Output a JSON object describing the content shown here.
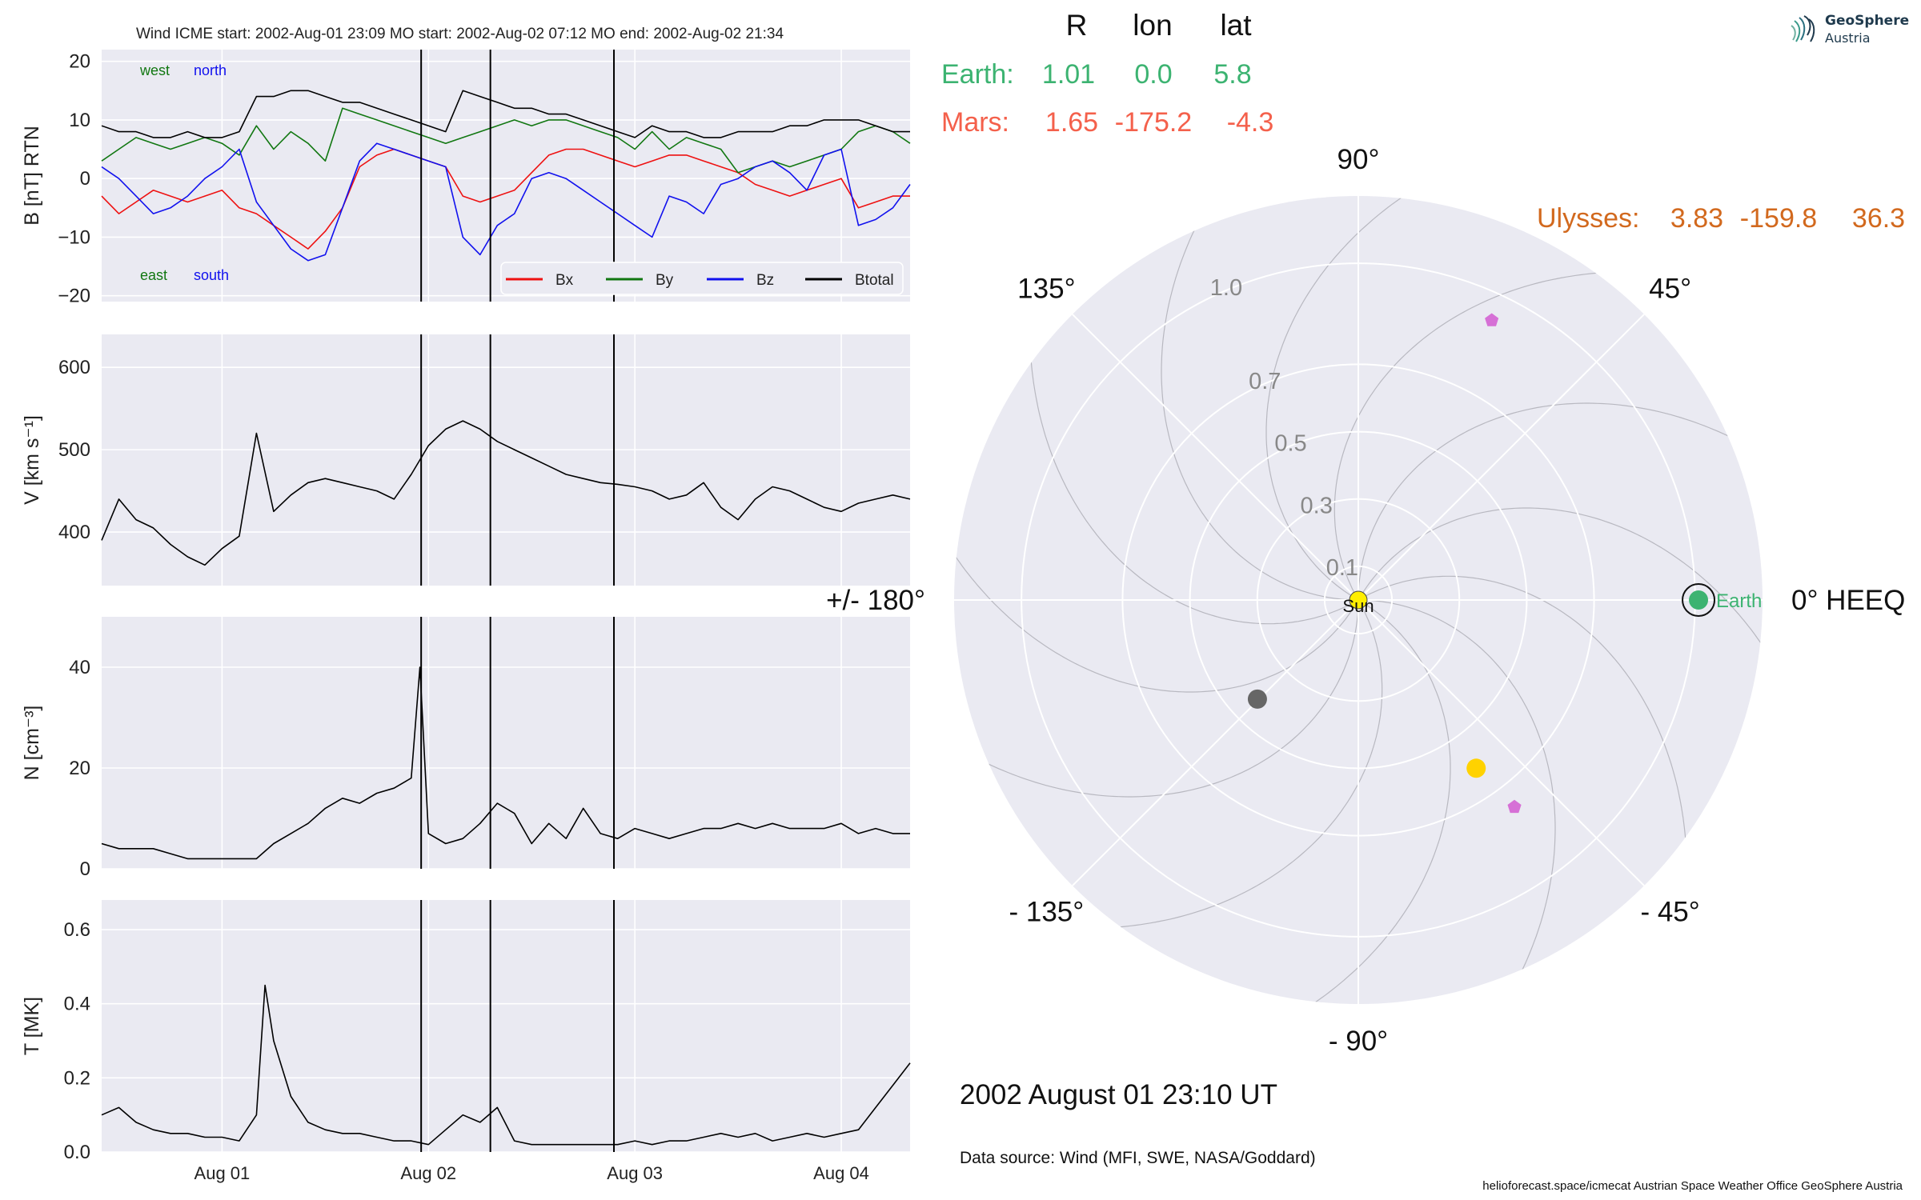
{
  "panel_title": "Wind    ICME start: 2002-Aug-01 23:09   MO start: 2002-Aug-02 07:12   MO end: 2002-Aug-02 21:34",
  "logo": {
    "line1": "GeoSphere",
    "line2": "Austria"
  },
  "position_table": {
    "headers": [
      "R",
      "lon",
      "lat"
    ],
    "rows": [
      {
        "name": "Earth:",
        "R": "1.01",
        "lon": "0.0",
        "lat": "5.8",
        "color": "#3cb371"
      },
      {
        "name": "Mars:",
        "R": "1.65",
        "lon": "-175.2",
        "lat": "-4.3",
        "color": "#f4604b"
      }
    ],
    "ulysses": {
      "name": "Ulysses:",
      "R": "3.83",
      "lon": "-159.8",
      "lat": "36.3",
      "color": "#d2691e"
    }
  },
  "timestamp": "2002 August 01  23:10 UT",
  "data_source": "Data source: Wind (MFI, SWE, NASA/Goddard)",
  "credits": "helioforecast.space/icmecat   Austrian Space Weather Office   GeoSphere Austria",
  "colors": {
    "bx": "#ee1111",
    "by": "#117711",
    "bz": "#1111ee",
    "btotal": "#000000",
    "earth": "#3cb371",
    "mars": "#666666",
    "sun": "#ffee00",
    "ulysses_marker": "#d670d6",
    "polar_bg": "#eaeaf2"
  },
  "chart_data": [
    {
      "type": "line",
      "title": "Wind    ICME start: 2002-Aug-01 23:09   MO start: 2002-Aug-02 07:12   MO end: 2002-Aug-02 21:34",
      "ylabel": "B [nT] RTN",
      "ylim": [
        -21,
        22
      ],
      "yticks": [
        20,
        10,
        0,
        -10,
        -20
      ],
      "ytick_labels": [
        "20",
        "10",
        "0",
        "−10",
        "−20"
      ],
      "xlim": [
        "2002-07-31 10:00",
        "2002-08-04 08:00"
      ],
      "xticks": [
        "2002-08-01 00:00",
        "2002-08-02 00:00",
        "2002-08-03 00:00",
        "2002-08-04 00:00"
      ],
      "xtick_labels": [
        "Aug 01",
        "Aug 02",
        "Aug 03",
        "Aug 04"
      ],
      "vlines": [
        "2002-08-01 23:09",
        "2002-08-02 07:12",
        "2002-08-02 21:34"
      ],
      "annotations": [
        {
          "text": "west",
          "color": "#117711"
        },
        {
          "text": "north",
          "color": "#1111ee"
        },
        {
          "text": "east",
          "color": "#117711"
        },
        {
          "text": "south",
          "color": "#1111ee"
        }
      ],
      "legend": {
        "position": "lower-right",
        "entries": [
          "Bx",
          "By",
          "Bz",
          "Btotal"
        ]
      },
      "series": [
        {
          "name": "Bx",
          "color": "#ee1111",
          "x_hours": [
            -14,
            -12,
            -10,
            -8,
            -6,
            -4,
            -2,
            0,
            2,
            4,
            6,
            8,
            10,
            12,
            14,
            16,
            18,
            20,
            22,
            24,
            26,
            28,
            30,
            32,
            34,
            36,
            38,
            40,
            42,
            44,
            46,
            48,
            50,
            52,
            54,
            56,
            58,
            60,
            62,
            64,
            66,
            68,
            70,
            72,
            74,
            76,
            78,
            80
          ],
          "values": [
            -3,
            -6,
            -4,
            -2,
            -3,
            -4,
            -3,
            -2,
            -5,
            -6,
            -8,
            -10,
            -12,
            -9,
            -5,
            2,
            4,
            5,
            4,
            3,
            2,
            -3,
            -4,
            -3,
            -2,
            1,
            4,
            5,
            5,
            4,
            3,
            2,
            3,
            4,
            4,
            3,
            2,
            1,
            -1,
            -2,
            -3,
            -2,
            -1,
            0,
            -5,
            -4,
            -3,
            -3
          ]
        },
        {
          "name": "By",
          "color": "#117711",
          "x_hours": [
            -14,
            -12,
            -10,
            -8,
            -6,
            -4,
            -2,
            0,
            2,
            4,
            6,
            8,
            10,
            12,
            14,
            16,
            18,
            20,
            22,
            24,
            26,
            28,
            30,
            32,
            34,
            36,
            38,
            40,
            42,
            44,
            46,
            48,
            50,
            52,
            54,
            56,
            58,
            60,
            62,
            64,
            66,
            68,
            70,
            72,
            74,
            76,
            78,
            80
          ],
          "values": [
            3,
            5,
            7,
            6,
            5,
            6,
            7,
            6,
            4,
            9,
            5,
            8,
            6,
            3,
            12,
            11,
            10,
            9,
            8,
            7,
            6,
            7,
            8,
            9,
            10,
            9,
            10,
            10,
            9,
            8,
            7,
            5,
            8,
            5,
            7,
            6,
            5,
            1,
            2,
            3,
            2,
            3,
            4,
            5,
            8,
            9,
            8,
            6
          ]
        },
        {
          "name": "Bz",
          "color": "#1111ee",
          "x_hours": [
            -14,
            -12,
            -10,
            -8,
            -6,
            -4,
            -2,
            0,
            2,
            4,
            6,
            8,
            10,
            12,
            14,
            16,
            18,
            20,
            22,
            24,
            26,
            28,
            30,
            32,
            34,
            36,
            38,
            40,
            42,
            44,
            46,
            48,
            50,
            52,
            54,
            56,
            58,
            60,
            62,
            64,
            66,
            68,
            70,
            72,
            74,
            76,
            78,
            80
          ],
          "values": [
            2,
            0,
            -3,
            -6,
            -5,
            -3,
            0,
            2,
            5,
            -4,
            -8,
            -12,
            -14,
            -13,
            -5,
            3,
            6,
            5,
            4,
            3,
            2,
            -10,
            -13,
            -8,
            -6,
            0,
            1,
            0,
            -2,
            -4,
            -6,
            -8,
            -10,
            -3,
            -4,
            -6,
            -1,
            0,
            2,
            3,
            1,
            -2,
            4,
            5,
            -8,
            -7,
            -5,
            -1
          ]
        },
        {
          "name": "Btotal",
          "color": "#000000",
          "x_hours": [
            -14,
            -12,
            -10,
            -8,
            -6,
            -4,
            -2,
            0,
            2,
            4,
            6,
            8,
            10,
            12,
            14,
            16,
            18,
            20,
            22,
            24,
            26,
            28,
            30,
            32,
            34,
            36,
            38,
            40,
            42,
            44,
            46,
            48,
            50,
            52,
            54,
            56,
            58,
            60,
            62,
            64,
            66,
            68,
            70,
            72,
            74,
            76,
            78,
            80
          ],
          "values": [
            9,
            8,
            8,
            7,
            7,
            8,
            7,
            7,
            8,
            14,
            14,
            15,
            15,
            14,
            13,
            13,
            12,
            11,
            10,
            9,
            8,
            15,
            14,
            13,
            12,
            12,
            11,
            11,
            10,
            9,
            8,
            7,
            9,
            8,
            8,
            7,
            7,
            8,
            8,
            8,
            9,
            9,
            10,
            10,
            10,
            9,
            8,
            8
          ]
        }
      ]
    },
    {
      "type": "line",
      "ylabel": "V [km s⁻¹]",
      "ylim": [
        335,
        640
      ],
      "yticks": [
        600,
        500,
        400
      ],
      "ytick_labels": [
        "600",
        "500",
        "400"
      ],
      "vlines": [
        "2002-08-01 23:09",
        "2002-08-02 07:12",
        "2002-08-02 21:34"
      ],
      "series": [
        {
          "name": "V",
          "color": "#000000",
          "x_hours": [
            -14,
            -12,
            -10,
            -8,
            -6,
            -4,
            -2,
            0,
            2,
            4,
            6,
            8,
            10,
            12,
            14,
            16,
            18,
            20,
            22,
            24,
            26,
            28,
            30,
            32,
            34,
            36,
            38,
            40,
            42,
            44,
            46,
            48,
            50,
            52,
            54,
            56,
            58,
            60,
            62,
            64,
            66,
            68,
            70,
            72,
            74,
            76,
            78,
            80
          ],
          "values": [
            390,
            440,
            415,
            405,
            385,
            370,
            360,
            380,
            395,
            520,
            425,
            445,
            460,
            465,
            460,
            455,
            450,
            440,
            470,
            505,
            525,
            535,
            525,
            510,
            500,
            490,
            480,
            470,
            465,
            460,
            458,
            455,
            450,
            440,
            445,
            460,
            430,
            415,
            440,
            455,
            450,
            440,
            430,
            425,
            435,
            440,
            445,
            440
          ]
        }
      ]
    },
    {
      "type": "line",
      "ylabel": "N [cm⁻³]",
      "ylim": [
        0,
        50
      ],
      "yticks": [
        40,
        20,
        0
      ],
      "ytick_labels": [
        "40",
        "20",
        "0"
      ],
      "vlines": [
        "2002-08-01 23:09",
        "2002-08-02 07:12",
        "2002-08-02 21:34"
      ],
      "series": [
        {
          "name": "N",
          "color": "#000000",
          "x_hours": [
            -14,
            -12,
            -10,
            -8,
            -6,
            -4,
            -2,
            0,
            2,
            4,
            6,
            8,
            10,
            12,
            14,
            16,
            18,
            20,
            22,
            23,
            24,
            26,
            28,
            30,
            32,
            34,
            36,
            38,
            40,
            42,
            44,
            46,
            48,
            50,
            52,
            54,
            56,
            58,
            60,
            62,
            64,
            66,
            68,
            70,
            72,
            74,
            76,
            78,
            80
          ],
          "values": [
            5,
            4,
            4,
            4,
            3,
            2,
            2,
            2,
            2,
            2,
            5,
            7,
            9,
            12,
            14,
            13,
            15,
            16,
            18,
            40,
            7,
            5,
            6,
            9,
            13,
            11,
            5,
            9,
            6,
            12,
            7,
            6,
            8,
            7,
            6,
            7,
            8,
            8,
            9,
            8,
            9,
            8,
            8,
            8,
            9,
            7,
            8,
            7,
            7
          ]
        }
      ]
    },
    {
      "type": "line",
      "ylabel": "T [MK]",
      "ylim": [
        0,
        0.68
      ],
      "yticks": [
        0.6,
        0.4,
        0.2,
        0.0
      ],
      "ytick_labels": [
        "0.6",
        "0.4",
        "0.2",
        "0.0"
      ],
      "xticks": [
        "2002-08-01 00:00",
        "2002-08-02 00:00",
        "2002-08-03 00:00",
        "2002-08-04 00:00"
      ],
      "xtick_labels": [
        "Aug 01",
        "Aug 02",
        "Aug 03",
        "Aug 04"
      ],
      "vlines": [
        "2002-08-01 23:09",
        "2002-08-02 07:12",
        "2002-08-02 21:34"
      ],
      "series": [
        {
          "name": "T",
          "color": "#000000",
          "x_hours": [
            -14,
            -12,
            -10,
            -8,
            -6,
            -4,
            -2,
            0,
            2,
            4,
            5,
            6,
            8,
            10,
            12,
            14,
            16,
            18,
            20,
            22,
            24,
            26,
            28,
            30,
            32,
            34,
            36,
            38,
            40,
            42,
            44,
            46,
            48,
            50,
            52,
            54,
            56,
            58,
            60,
            62,
            64,
            66,
            68,
            70,
            72,
            74,
            76,
            78,
            80
          ],
          "values": [
            0.1,
            0.12,
            0.08,
            0.06,
            0.05,
            0.05,
            0.04,
            0.04,
            0.03,
            0.1,
            0.45,
            0.3,
            0.15,
            0.08,
            0.06,
            0.05,
            0.05,
            0.04,
            0.03,
            0.03,
            0.02,
            0.06,
            0.1,
            0.08,
            0.12,
            0.03,
            0.02,
            0.02,
            0.02,
            0.02,
            0.02,
            0.02,
            0.03,
            0.02,
            0.03,
            0.03,
            0.04,
            0.05,
            0.04,
            0.05,
            0.03,
            0.04,
            0.05,
            0.04,
            0.05,
            0.06,
            0.12,
            0.18,
            0.24
          ]
        }
      ]
    },
    {
      "type": "scatter",
      "subtype": "polar",
      "title": "",
      "radial_ticks": [
        "0.1",
        "0.3",
        "0.5",
        "0.7",
        "1.0"
      ],
      "radial_tick_values": [
        0.1,
        0.3,
        0.5,
        0.7,
        1.0
      ],
      "rmax": 1.2,
      "angle_labels": [
        {
          "angle": 0,
          "text": "0° HEEQ"
        },
        {
          "angle": 45,
          "text": "45°"
        },
        {
          "angle": 90,
          "text": "90°"
        },
        {
          "angle": 135,
          "text": "135°"
        },
        {
          "angle": 180,
          "text": "+/- 180°"
        },
        {
          "angle": -135,
          "text": "- 135°"
        },
        {
          "angle": -90,
          "text": "- 90°"
        },
        {
          "angle": -45,
          "text": "- 45°"
        }
      ],
      "points": [
        {
          "name": "Sun",
          "label": "Sun",
          "r": 0.0,
          "lon": 0,
          "color": "#ffee00",
          "shape": "circle"
        },
        {
          "name": "Earth",
          "label": "Earth",
          "r": 1.01,
          "lon": 0.0,
          "color": "#3cb371",
          "shape": "circle-ring"
        },
        {
          "name": "Mars-position",
          "label": "",
          "r": 0.42,
          "lon": -135.5,
          "color": "#666666",
          "shape": "circle"
        },
        {
          "name": "yellow-point",
          "label": "",
          "r": 0.61,
          "lon": -55.0,
          "color": "#ffd200",
          "shape": "circle"
        },
        {
          "name": "spacecraft-top",
          "label": "",
          "r": 0.92,
          "lon": 64.5,
          "color": "#d670d6",
          "shape": "pentagon"
        },
        {
          "name": "spacecraft-bottom",
          "label": "",
          "r": 0.77,
          "lon": -53.0,
          "color": "#d670d6",
          "shape": "pentagon"
        }
      ]
    }
  ]
}
